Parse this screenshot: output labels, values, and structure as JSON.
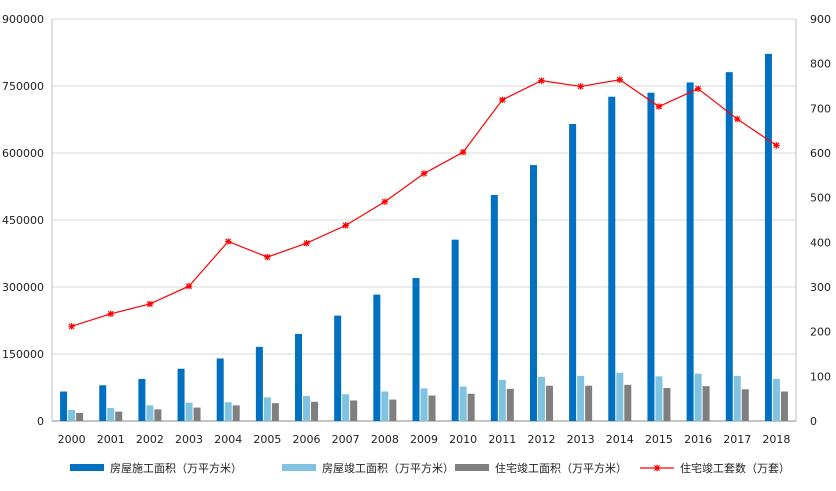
{
  "chart_data": {
    "type": "bar",
    "categories": [
      "2000",
      "2001",
      "2002",
      "2003",
      "2004",
      "2005",
      "2006",
      "2007",
      "2008",
      "2009",
      "2010",
      "2011",
      "2012",
      "2013",
      "2014",
      "2015",
      "2016",
      "2017",
      "2018"
    ],
    "y_left": {
      "range": [
        0,
        900000
      ],
      "ticks": [
        0,
        150000,
        300000,
        450000,
        600000,
        750000,
        900000
      ]
    },
    "y_right": {
      "range": [
        0,
        900
      ],
      "ticks": [
        0,
        100,
        200,
        300,
        400,
        500,
        600,
        700,
        800,
        900
      ]
    },
    "grid": true,
    "legend_position": "bottom",
    "series": [
      {
        "name": "房屋施工面积（万平方米）",
        "type": "bar",
        "axis": "left",
        "color": "#0070c0",
        "values": [
          66000,
          80000,
          94000,
          117000,
          140000,
          166000,
          195000,
          236000,
          283000,
          320000,
          406000,
          506000,
          573000,
          665000,
          726000,
          735000,
          758000,
          781000,
          822000
        ]
      },
      {
        "name": "房屋竣工面积（万平方米）",
        "type": "bar",
        "axis": "left",
        "color": "#7fc3e0",
        "values": [
          25000,
          29000,
          35000,
          41000,
          42000,
          53000,
          56000,
          60000,
          66000,
          73000,
          77000,
          92000,
          99000,
          101000,
          108000,
          100000,
          106000,
          101000,
          94000
        ]
      },
      {
        "name": "住宅竣工面积（万平方米）",
        "type": "bar",
        "axis": "left",
        "color": "#7f7f7f",
        "values": [
          18000,
          21000,
          26000,
          30000,
          35000,
          40000,
          43000,
          46000,
          48000,
          57000,
          61000,
          72000,
          79000,
          79000,
          81000,
          74000,
          78000,
          71000,
          66000
        ]
      },
      {
        "name": "住宅竣工套数（万套）",
        "type": "line",
        "axis": "right",
        "color": "#ff0000",
        "values": [
          212,
          240,
          262,
          302,
          402,
          367,
          398,
          438,
          491,
          554,
          602,
          719,
          762,
          749,
          764,
          704,
          744,
          676,
          617
        ]
      }
    ]
  }
}
